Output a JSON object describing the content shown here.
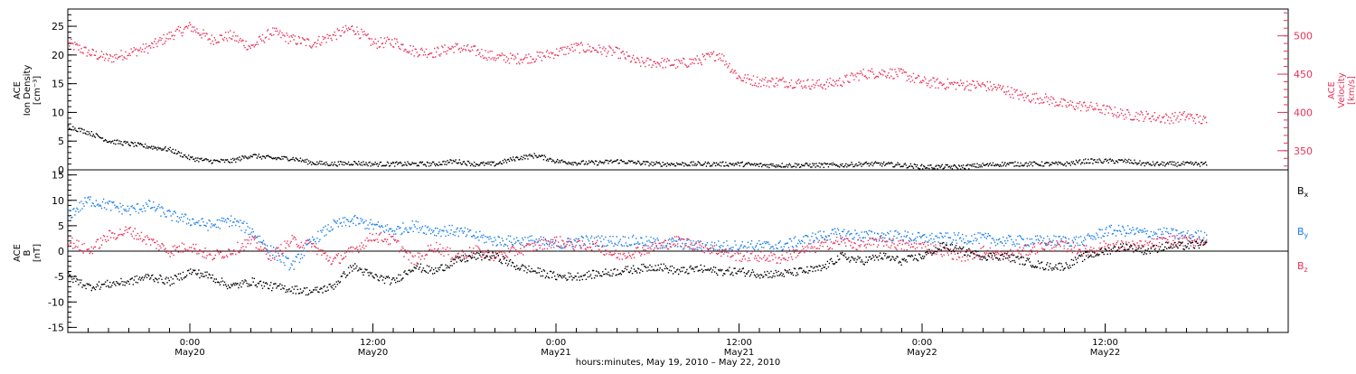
{
  "chart_data": [
    {
      "type": "scatter",
      "panel": "top",
      "ylabel_lines": [
        "ACE",
        "Ion Density",
        "[cm⁻³]"
      ],
      "ylim": [
        0,
        28
      ],
      "yticks": [
        0,
        5,
        10,
        15,
        20,
        25
      ],
      "y2label_lines": [
        "ACE",
        "Velocity",
        "[km/s]"
      ],
      "y2lim": [
        325,
        535
      ],
      "y2ticks": [
        350,
        400,
        450,
        500
      ],
      "x_range_hours": [
        0,
        60
      ],
      "series": [
        {
          "name": "Velocity",
          "axis": "right",
          "color": "#e8325a",
          "x": [
            0,
            1,
            2,
            3,
            4,
            5,
            6,
            7,
            8,
            9,
            10,
            11,
            12,
            13,
            14,
            15,
            16,
            17,
            18,
            19,
            20,
            21,
            22,
            23,
            24,
            25,
            26,
            27,
            28,
            29,
            30,
            31,
            32,
            33,
            34,
            35,
            36,
            37,
            38,
            39,
            40,
            41,
            42,
            43,
            44,
            45,
            46,
            47,
            48,
            49,
            50,
            51,
            52,
            53,
            54,
            55,
            56
          ],
          "y": [
            490,
            478,
            470,
            478,
            485,
            500,
            512,
            495,
            500,
            485,
            505,
            495,
            490,
            500,
            510,
            490,
            492,
            480,
            478,
            485,
            480,
            472,
            470,
            472,
            478,
            485,
            482,
            478,
            465,
            465,
            463,
            468,
            476,
            445,
            440,
            440,
            438,
            436,
            440,
            450,
            452,
            450,
            440,
            437,
            436,
            435,
            430,
            420,
            418,
            410,
            408,
            403,
            397,
            395,
            392,
            395,
            388
          ]
        },
        {
          "name": "Ion Density",
          "axis": "left",
          "color": "#000000",
          "x": [
            0,
            1,
            2,
            3,
            4,
            5,
            6,
            7,
            8,
            9,
            10,
            11,
            12,
            13,
            14,
            15,
            16,
            17,
            18,
            19,
            20,
            21,
            22,
            23,
            24,
            25,
            26,
            27,
            28,
            29,
            30,
            31,
            32,
            33,
            34,
            35,
            36,
            37,
            38,
            39,
            40,
            41,
            42,
            43,
            44,
            45,
            46,
            47,
            48,
            49,
            50,
            51,
            52,
            53,
            54,
            55,
            56
          ],
          "y": [
            7.5,
            6.5,
            5,
            4.5,
            4,
            3.5,
            2,
            1.5,
            1.5,
            2.5,
            2,
            2,
            1.2,
            1,
            1.2,
            1,
            1,
            1,
            1,
            1.5,
            1,
            1,
            2,
            2.5,
            1.5,
            1.2,
            1.2,
            1.5,
            1.2,
            1,
            1,
            1,
            1,
            1,
            0.8,
            0.8,
            0.8,
            0.8,
            0.8,
            1,
            1,
            0.8,
            0.5,
            0.5,
            0.5,
            0.8,
            1,
            1,
            1,
            1,
            1.5,
            1.5,
            1.5,
            1,
            1,
            1,
            1
          ]
        }
      ]
    },
    {
      "type": "scatter",
      "panel": "bottom",
      "ylabel_lines": [
        "ACE",
        "B",
        "[nT]"
      ],
      "ylim": [
        -16,
        16
      ],
      "yticks": [
        -15,
        -10,
        -5,
        0,
        5,
        10,
        15
      ],
      "x_range_hours": [
        0,
        60
      ],
      "x_tick_hours": [
        6,
        15,
        24,
        33,
        42,
        51
      ],
      "x_tick_labels": [
        [
          "0:00",
          "May20"
        ],
        [
          "12:00",
          "May20"
        ],
        [
          "0:00",
          "May21"
        ],
        [
          "12:00",
          "May21"
        ],
        [
          "0:00",
          "May22"
        ],
        [
          "12:00",
          "May22"
        ]
      ],
      "xlabel": "hours:minutes, May 19, 2010 – May 22, 2010",
      "legend": [
        {
          "label": "B",
          "sub": "x",
          "color": "#000000"
        },
        {
          "label": "B",
          "sub": "y",
          "color": "#1a7ee8"
        },
        {
          "label": "B",
          "sub": "z",
          "color": "#e8325a"
        }
      ],
      "series": [
        {
          "name": "Bx",
          "color": "#000000",
          "x": [
            0,
            1,
            2,
            3,
            4,
            5,
            6,
            7,
            8,
            9,
            10,
            11,
            12,
            13,
            14,
            15,
            16,
            17,
            18,
            19,
            20,
            21,
            22,
            23,
            24,
            25,
            26,
            27,
            28,
            29,
            30,
            31,
            32,
            33,
            34,
            35,
            36,
            37,
            38,
            39,
            40,
            41,
            42,
            43,
            44,
            45,
            46,
            47,
            48,
            49,
            50,
            51,
            52,
            53,
            54,
            55,
            56
          ],
          "y": [
            -5,
            -7,
            -6.5,
            -6,
            -5,
            -6,
            -4,
            -5,
            -7,
            -6,
            -7,
            -7.5,
            -8,
            -7,
            -3,
            -5,
            -6,
            -3,
            -4,
            -2,
            -1,
            -1,
            -3,
            -4,
            -5,
            -5,
            -4.5,
            -4,
            -3.5,
            -3,
            -4,
            -3.5,
            -4,
            -4,
            -4.5,
            -4.5,
            -4,
            -3.5,
            -1,
            -2,
            -1,
            -2,
            -1,
            1,
            0,
            -1,
            -1,
            -2,
            -3,
            -3,
            -1,
            0,
            1,
            0,
            1,
            1,
            1.5
          ]
        },
        {
          "name": "By",
          "color": "#1a7ee8",
          "x": [
            0,
            1,
            2,
            3,
            4,
            5,
            6,
            7,
            8,
            9,
            10,
            11,
            12,
            13,
            14,
            15,
            16,
            17,
            18,
            19,
            20,
            21,
            22,
            23,
            24,
            25,
            26,
            27,
            28,
            29,
            30,
            31,
            32,
            33,
            34,
            35,
            36,
            37,
            38,
            39,
            40,
            41,
            42,
            43,
            44,
            45,
            46,
            47,
            48,
            49,
            50,
            51,
            52,
            53,
            54,
            55,
            56
          ],
          "y": [
            7,
            10,
            9,
            8,
            9,
            7,
            6,
            5,
            6,
            4,
            0,
            -3,
            2,
            5,
            6,
            5,
            4,
            5,
            4,
            4,
            3,
            2,
            2,
            2,
            1,
            2,
            2,
            2,
            2,
            1.5,
            1.5,
            1,
            1,
            1,
            1,
            1,
            2,
            3,
            3.5,
            3,
            3,
            3,
            2.5,
            2.5,
            2.5,
            2.5,
            2,
            2,
            2,
            2,
            2,
            4,
            4,
            3.5,
            3.5,
            3,
            3
          ]
        },
        {
          "name": "Bz",
          "color": "#e8325a",
          "x": [
            0,
            1,
            2,
            3,
            4,
            5,
            6,
            7,
            8,
            9,
            10,
            11,
            12,
            13,
            14,
            15,
            16,
            17,
            18,
            19,
            20,
            21,
            22,
            23,
            24,
            25,
            26,
            27,
            28,
            29,
            30,
            31,
            32,
            33,
            34,
            35,
            36,
            37,
            38,
            39,
            40,
            41,
            42,
            43,
            44,
            45,
            46,
            47,
            48,
            49,
            50,
            51,
            52,
            53,
            54,
            55,
            56
          ],
          "y": [
            2,
            0,
            3,
            4,
            2,
            0,
            1,
            -1,
            0,
            2,
            -1,
            2,
            1,
            -2,
            0,
            3,
            2,
            -2,
            1,
            -1,
            0,
            -1,
            0,
            1,
            2,
            1,
            1,
            -1,
            0,
            1,
            2,
            1,
            0,
            -1,
            -1,
            -1.5,
            0,
            1,
            2,
            1,
            2,
            1,
            1,
            0,
            -1,
            0,
            -1,
            0,
            1,
            1,
            0,
            1,
            1,
            1,
            2,
            2,
            2
          ]
        }
      ]
    }
  ]
}
